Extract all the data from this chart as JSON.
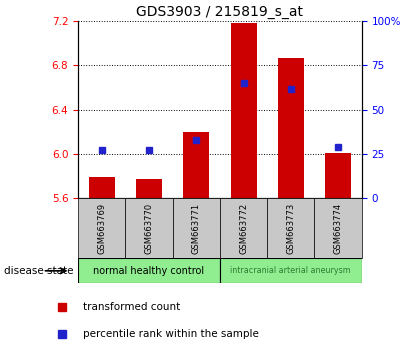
{
  "title": "GDS3903 / 215819_s_at",
  "samples": [
    "GSM663769",
    "GSM663770",
    "GSM663771",
    "GSM663772",
    "GSM663773",
    "GSM663774"
  ],
  "transformed_count": [
    5.79,
    5.77,
    6.2,
    7.18,
    6.87,
    6.01
  ],
  "percentile_rank": [
    27,
    27,
    33,
    65,
    62,
    29
  ],
  "ylim_left": [
    5.6,
    7.2
  ],
  "ylim_right": [
    0,
    100
  ],
  "yticks_left": [
    5.6,
    6.0,
    6.4,
    6.8,
    7.2
  ],
  "yticks_right": [
    0,
    25,
    50,
    75,
    100
  ],
  "bar_color": "#cc0000",
  "dot_color": "#2222cc",
  "bar_bottom": 5.6,
  "group_box_color": "#c8c8c8",
  "group1_label": "normal healthy control",
  "group2_label": "intracranial arterial aneurysm",
  "group_green": "#90ee90",
  "group2_text_color": "#2e7d32",
  "disease_state_label": "disease state",
  "legend_bar_label": "transformed count",
  "legend_dot_label": "percentile rank within the sample",
  "title_fontsize": 10,
  "tick_fontsize": 7.5,
  "sample_fontsize": 6,
  "group_fontsize": 7,
  "legend_fontsize": 7.5
}
